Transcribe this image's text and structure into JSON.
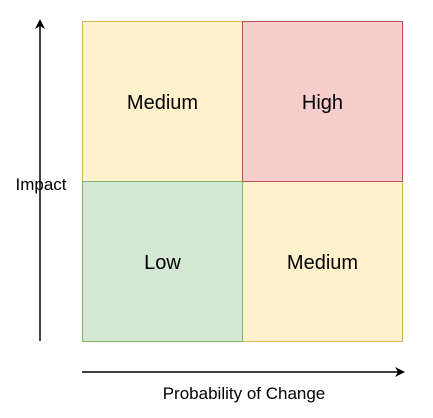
{
  "axes": {
    "y_label": "Impact",
    "x_label": "Probability of Change"
  },
  "quadrants": {
    "top_left": {
      "label": "Medium",
      "fill": "#fff2cc",
      "stroke": "#d6b656"
    },
    "top_right": {
      "label": "High",
      "fill": "#f8cecc",
      "stroke": "#b85450"
    },
    "bottom_left": {
      "label": "Low",
      "fill": "#d5e8d4",
      "stroke": "#82b366"
    },
    "bottom_right": {
      "label": "Medium",
      "fill": "#fff2cc",
      "stroke": "#d6b656"
    }
  }
}
